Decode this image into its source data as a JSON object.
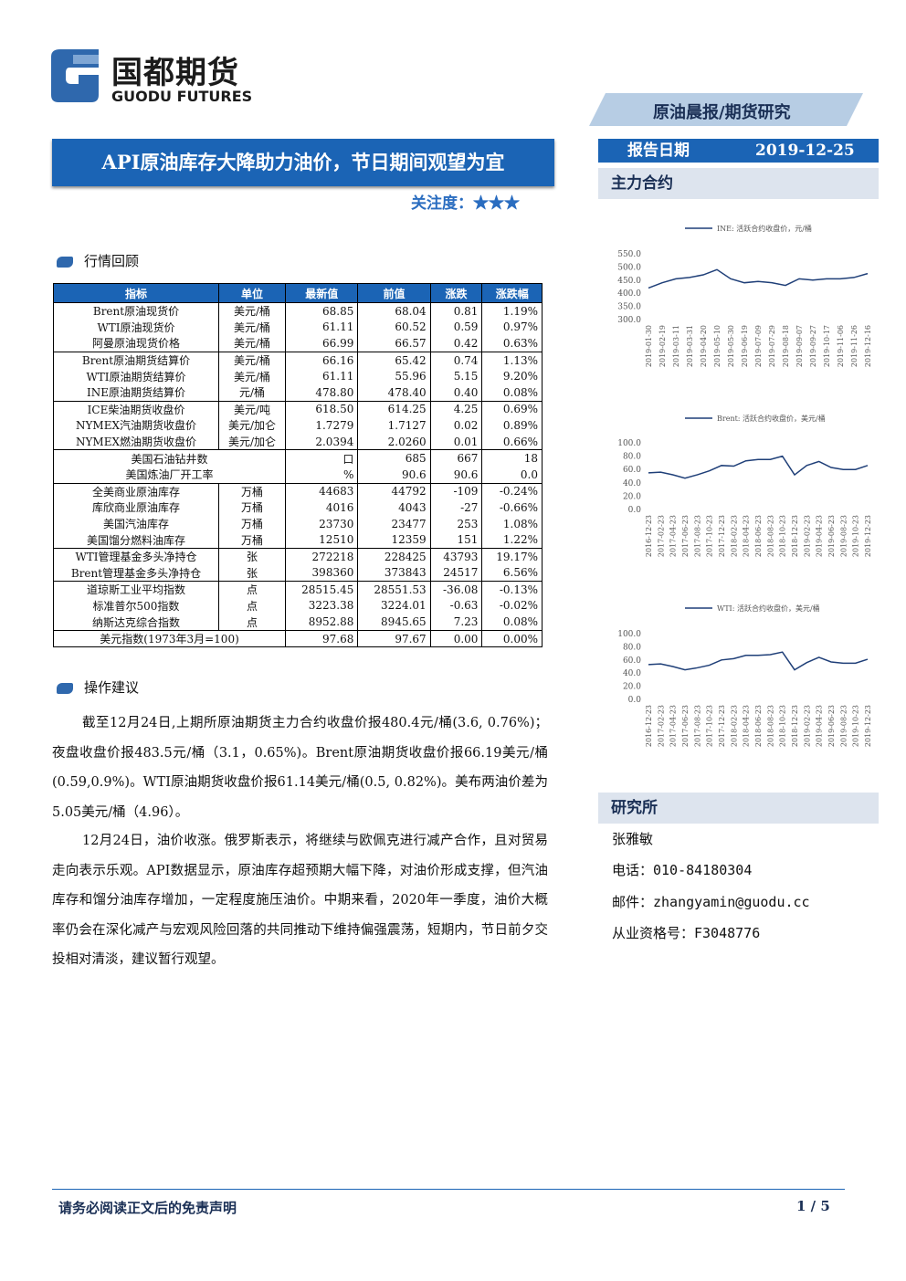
{
  "header": {
    "logo_cn": "国都期货",
    "logo_en": "GUODU FUTURES",
    "banner": "原油晨报/期货研究",
    "title": "API原油库存大降助力油价，节日期间观望为宜",
    "attention_label": "关注度：",
    "attention_stars": "★★★",
    "date_label": "报告日期",
    "date": "2019-12-25",
    "contracts_label": "主力合约"
  },
  "section1": "行情回顾",
  "table": {
    "columns": [
      "指标",
      "单位",
      "最新值",
      "前值",
      "涨跌",
      "涨跌幅"
    ],
    "groups": [
      [
        [
          "Brent原油现货价",
          "美元/桶",
          "68.85",
          "68.04",
          "0.81",
          "1.19%"
        ],
        [
          "WTI原油现货价",
          "美元/桶",
          "61.11",
          "60.52",
          "0.59",
          "0.97%"
        ],
        [
          "阿曼原油现货价格",
          "美元/桶",
          "66.99",
          "66.57",
          "0.42",
          "0.63%"
        ]
      ],
      [
        [
          "Brent原油期货结算价",
          "美元/桶",
          "66.16",
          "65.42",
          "0.74",
          "1.13%"
        ],
        [
          "WTI原油期货结算价",
          "美元/桶",
          "61.11",
          "55.96",
          "5.15",
          "9.20%"
        ],
        [
          "INE原油期货结算价",
          "元/桶",
          "478.80",
          "478.40",
          "0.40",
          "0.08%"
        ]
      ],
      [
        [
          "ICE柴油期货收盘价",
          "美元/吨",
          "618.50",
          "614.25",
          "4.25",
          "0.69%"
        ],
        [
          "NYMEX汽油期货收盘价",
          "美元/加仑",
          "1.7279",
          "1.7127",
          "0.02",
          "0.89%"
        ],
        [
          "NYMEX燃油期货收盘价",
          "美元/加仑",
          "2.0394",
          "2.0260",
          "0.01",
          "0.66%"
        ]
      ],
      [
        [
          "美国石油钻井数",
          "口",
          "685",
          "667",
          "18"
        ],
        [
          "美国炼油厂开工率",
          "%",
          "90.6",
          "90.6",
          "0.0"
        ]
      ],
      [
        [
          "全美商业原油库存",
          "万桶",
          "44683",
          "44792",
          "-109",
          "-0.24%"
        ],
        [
          "库欣商业原油库存",
          "万桶",
          "4016",
          "4043",
          "-27",
          "-0.66%"
        ],
        [
          "美国汽油库存",
          "万桶",
          "23730",
          "23477",
          "253",
          "1.08%"
        ],
        [
          "美国馏分燃料油库存",
          "万桶",
          "12510",
          "12359",
          "151",
          "1.22%"
        ]
      ],
      [
        [
          "WTI管理基金多头净持仓",
          "张",
          "272218",
          "228425",
          "43793",
          "19.17%"
        ],
        [
          "Brent管理基金多头净持仓",
          "张",
          "398360",
          "373843",
          "24517",
          "6.56%"
        ]
      ],
      [
        [
          "道琼斯工业平均指数",
          "点",
          "28515.45",
          "28551.53",
          "-36.08",
          "-0.13%"
        ],
        [
          "标准普尔500指数",
          "点",
          "3223.38",
          "3224.01",
          "-0.63",
          "-0.02%"
        ],
        [
          "纳斯达克综合指数",
          "点",
          "8952.88",
          "8945.65",
          "7.23",
          "0.08%"
        ]
      ],
      [
        [
          "美元指数(1973年3月=100)",
          "97.68",
          "97.67",
          "0.00",
          "0.00%"
        ]
      ]
    ]
  },
  "section2": "操作建议",
  "paragraphs": [
    "截至12月24日,上期所原油期货主力合约收盘价报480.4元/桶(3.6, 0.76%)；夜盘收盘价报483.5元/桶（3.1，0.65%)。Brent原油期货收盘价报66.19美元/桶(0.59,0.9%)。WTI原油期货收盘价报61.14美元/桶(0.5, 0.82%)。美布两油价差为5.05美元/桶（4.96）。",
    "12月24日，油价收涨。俄罗斯表示，将继续与欧佩克进行减产合作，且对贸易走向表示乐观。API数据显示，原油库存超预期大幅下降，对油价形成支撑，但汽油库存和馏分油库存增加，一定程度施压油价。中期来看，2020年一季度，油价大概率仍会在深化减产与宏观风险回落的共同推动下维持偏强震荡，短期内，节日前夕交投相对清淡，建议暂行观望。"
  ],
  "research": {
    "title": "研究所",
    "name": "张雅敏",
    "phone": "电话：010-84180304",
    "email": "邮件：zhangyamin@guodu.cc",
    "license": "从业资格号：F3048776"
  },
  "footer": {
    "disclaimer": "请务必阅读正文后的免责声明",
    "page": "1 / 5"
  },
  "chart_data": [
    {
      "type": "line",
      "categories": [
        "2019-01-30",
        "2019-02-19",
        "2019-03-11",
        "2019-03-31",
        "2019-04-20",
        "2019-05-10",
        "2019-05-30",
        "2019-06-19",
        "2019-07-09",
        "2019-07-29",
        "2019-08-18",
        "2019-09-07",
        "2019-09-27",
        "2019-10-17",
        "2019-11-06",
        "2019-11-26",
        "2019-12-16"
      ],
      "series": [
        {
          "name": "INE: 活跃合约收盘价，元/桶",
          "color": "#1f3f78",
          "values": [
            420,
            440,
            455,
            460,
            470,
            490,
            455,
            440,
            445,
            440,
            430,
            455,
            450,
            455,
            455,
            460,
            475
          ]
        }
      ],
      "ylim": [
        300,
        550
      ],
      "yticks": [
        {
          "value": 300,
          "label": "300.0"
        },
        {
          "value": 350,
          "label": "350.0"
        },
        {
          "value": 400,
          "label": "400.0"
        },
        {
          "value": 450,
          "label": "450.0"
        },
        {
          "value": 500,
          "label": "500.0"
        },
        {
          "value": 550,
          "label": "550.0"
        }
      ]
    },
    {
      "type": "line",
      "categories": [
        "2016-12-23",
        "2017-02-23",
        "2017-04-23",
        "2017-06-23",
        "2017-08-23",
        "2017-10-23",
        "2017-12-23",
        "2018-02-23",
        "2018-04-23",
        "2018-06-23",
        "2018-08-23",
        "2018-10-23",
        "2018-12-23",
        "2019-02-23",
        "2019-04-23",
        "2019-06-23",
        "2019-08-23",
        "2019-10-23",
        "2019-12-23"
      ],
      "series": [
        {
          "name": "Brent: 活跃合约收盘价，美元/桶",
          "color": "#1f3f78",
          "values": [
            55,
            56,
            52,
            47,
            52,
            58,
            66,
            65,
            73,
            75,
            75,
            80,
            52,
            66,
            72,
            63,
            60,
            60,
            66
          ]
        }
      ],
      "ylim": [
        0,
        100
      ],
      "yticks": [
        {
          "value": 0,
          "label": "0.0"
        },
        {
          "value": 20,
          "label": "20.0"
        },
        {
          "value": 40,
          "label": "40.0"
        },
        {
          "value": 60,
          "label": "60.0"
        },
        {
          "value": 80,
          "label": "80.0"
        },
        {
          "value": 100,
          "label": "100.0"
        }
      ]
    },
    {
      "type": "line",
      "categories": [
        "2016-12-23",
        "2017-02-23",
        "2017-04-23",
        "2017-06-23",
        "2017-08-23",
        "2017-10-23",
        "2017-12-23",
        "2018-02-23",
        "2018-04-23",
        "2018-06-23",
        "2018-08-23",
        "2018-10-23",
        "2018-12-23",
        "2019-02-23",
        "2019-04-23",
        "2019-06-23",
        "2019-08-23",
        "2019-10-23",
        "2019-12-23"
      ],
      "series": [
        {
          "name": "WTI: 活跃合约收盘价，美元/桶",
          "color": "#1f3f78",
          "values": [
            53,
            54,
            50,
            45,
            48,
            52,
            60,
            62,
            67,
            67,
            68,
            72,
            45,
            56,
            64,
            57,
            55,
            55,
            61
          ]
        }
      ],
      "ylim": [
        0,
        100
      ],
      "yticks": [
        {
          "value": 0,
          "label": "0.0"
        },
        {
          "value": 20,
          "label": "20.0"
        },
        {
          "value": 40,
          "label": "40.0"
        },
        {
          "value": 60,
          "label": "60.0"
        },
        {
          "value": 80,
          "label": "80.0"
        },
        {
          "value": 100,
          "label": "100.0"
        }
      ]
    }
  ]
}
